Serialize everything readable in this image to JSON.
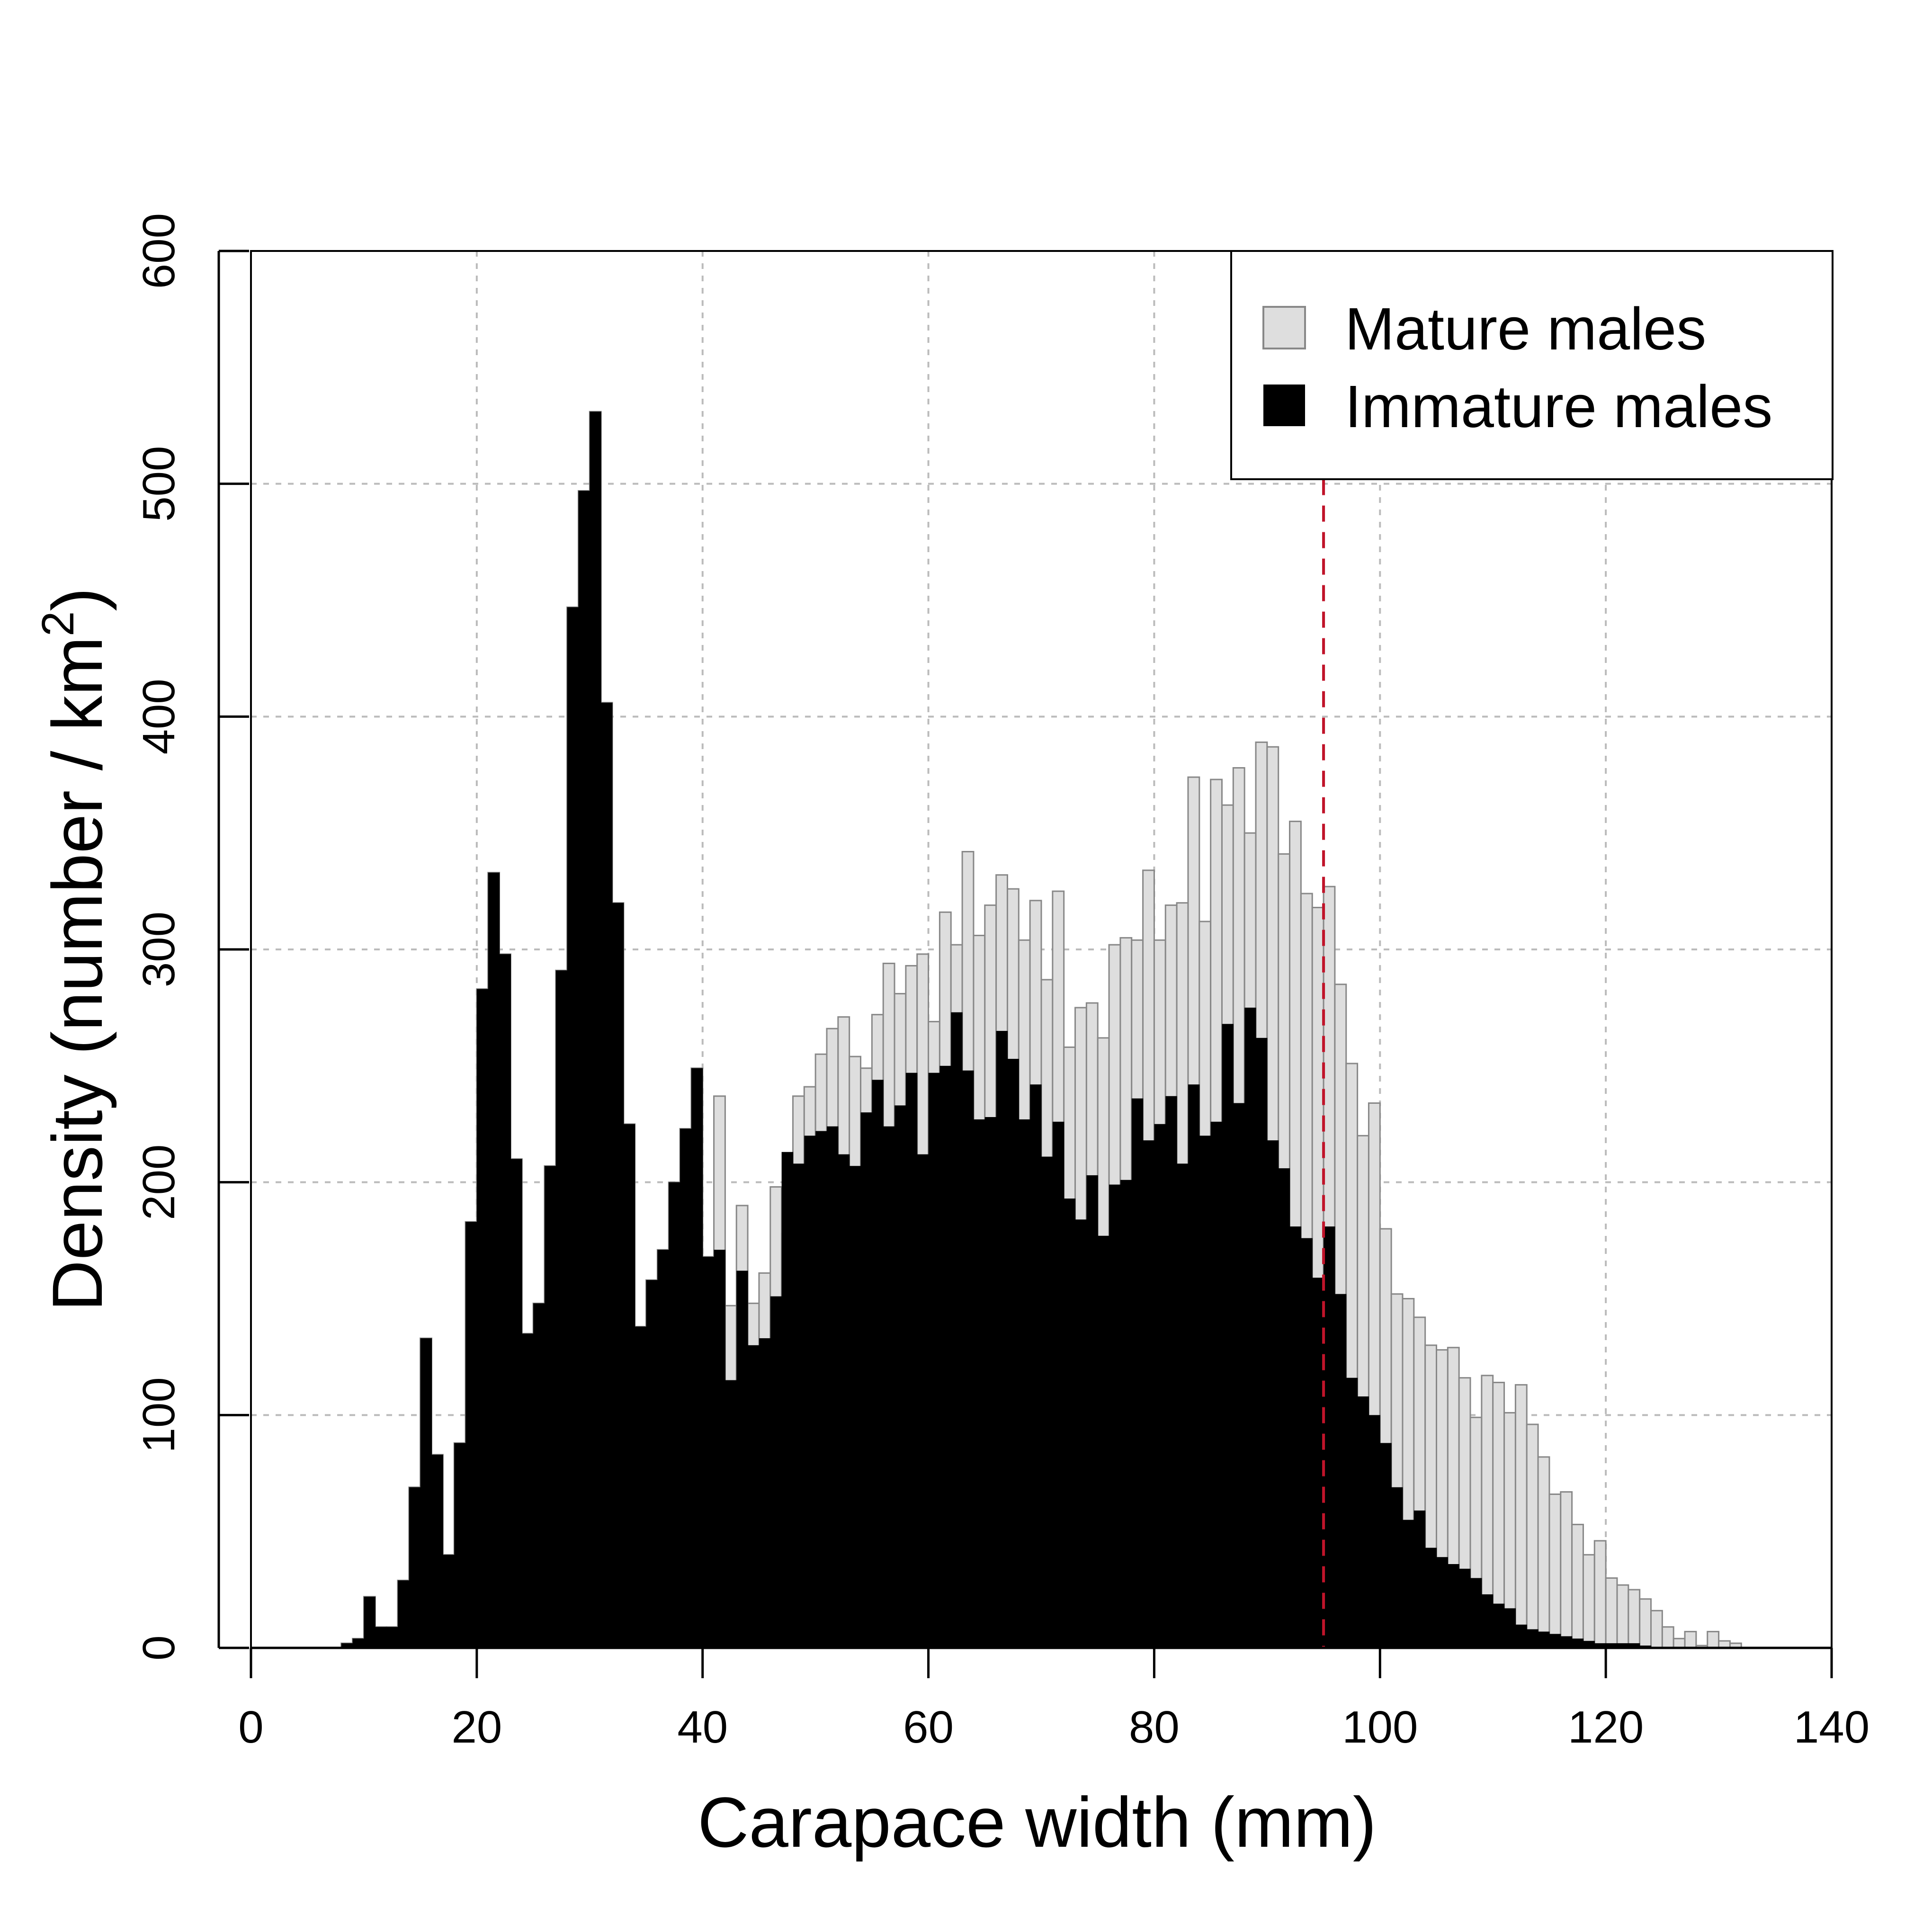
{
  "chart_data": {
    "type": "bar",
    "stacked": "overlay",
    "xlabel": "Carapace width (mm)",
    "ylabel_main": "Density (number / km",
    "ylabel_sup": "2",
    "ylabel_close": ")",
    "xlim": [
      0,
      140
    ],
    "ylim": [
      0,
      600
    ],
    "x_ticks": [
      "0",
      "20",
      "40",
      "60",
      "80",
      "100",
      "120",
      "140"
    ],
    "y_ticks": [
      "0",
      "100",
      "200",
      "300",
      "400",
      "500",
      "600"
    ],
    "grid": true,
    "legend_position": "top-right",
    "bin_width": 1,
    "x_start": 8,
    "reference_line": {
      "x": 95,
      "color": "#c0142a",
      "style": "dashed"
    },
    "colors": {
      "mature": "#dedede",
      "mature_edge": "#888888",
      "immature": "#000000",
      "grid": "#bbbbbb"
    },
    "series": [
      {
        "name": "Mature males",
        "values": [
          2,
          4,
          22,
          9,
          9,
          29,
          69,
          133,
          83,
          40,
          88,
          183,
          283,
          333,
          298,
          210,
          135,
          148,
          207,
          291,
          447,
          497,
          531,
          406,
          320,
          225,
          138,
          158,
          171,
          200,
          223,
          249,
          168,
          237,
          147,
          190,
          148,
          161,
          198,
          178,
          237,
          241,
          255,
          266,
          271,
          254,
          249,
          272,
          294,
          281,
          293,
          298,
          269,
          316,
          302,
          342,
          306,
          319,
          332,
          326,
          304,
          321,
          287,
          325,
          258,
          275,
          277,
          262,
          302,
          305,
          304,
          334,
          304,
          319,
          320,
          374,
          312,
          373,
          362,
          378,
          350,
          389,
          387,
          341,
          355,
          324,
          318,
          327,
          285,
          251,
          220,
          234,
          180,
          152,
          150,
          142,
          130,
          128,
          129,
          116,
          99,
          117,
          114,
          101,
          113,
          96,
          82,
          66,
          67,
          53,
          40,
          46,
          30,
          27,
          25,
          21,
          16,
          9,
          4,
          7,
          1,
          7,
          3,
          2
        ]
      },
      {
        "name": "Immature males",
        "values": [
          2,
          4,
          22,
          9,
          9,
          29,
          69,
          133,
          83,
          40,
          88,
          183,
          283,
          333,
          298,
          210,
          135,
          148,
          207,
          291,
          447,
          497,
          531,
          406,
          320,
          225,
          138,
          158,
          171,
          200,
          223,
          249,
          168,
          171,
          115,
          162,
          130,
          133,
          151,
          213,
          208,
          220,
          222,
          224,
          212,
          207,
          230,
          244,
          224,
          233,
          247,
          212,
          247,
          250,
          273,
          248,
          227,
          228,
          265,
          253,
          227,
          242,
          211,
          226,
          193,
          184,
          203,
          177,
          199,
          201,
          236,
          218,
          225,
          237,
          208,
          242,
          220,
          226,
          268,
          234,
          275,
          262,
          218,
          206,
          181,
          176,
          159,
          181,
          152,
          116,
          108,
          100,
          88,
          69,
          55,
          59,
          43,
          39,
          36,
          34,
          30,
          23,
          19,
          17,
          10,
          8,
          7,
          6,
          5,
          4,
          3,
          2,
          2,
          2,
          2,
          1,
          0,
          0,
          0,
          0,
          0,
          0,
          0,
          0
        ]
      }
    ]
  }
}
